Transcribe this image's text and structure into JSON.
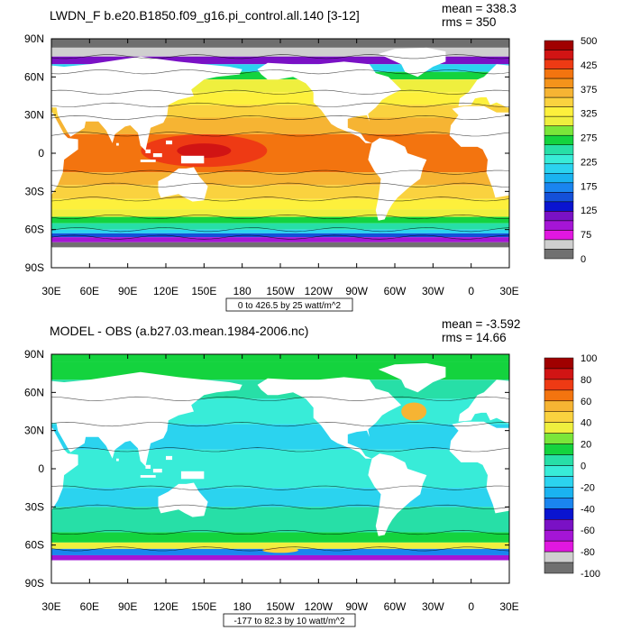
{
  "chart_data": [
    {
      "type": "heatmap",
      "title": "LWDN_F b.e20.B1850.f09_g16.pi_control.all.140 [3-12]",
      "stats": {
        "mean": "mean = 338.3",
        "rms": "rms = 350"
      },
      "xticks": [
        "30E",
        "60E",
        "90E",
        "120E",
        "150E",
        "180",
        "150W",
        "120W",
        "90W",
        "60W",
        "30W",
        "0",
        "30E"
      ],
      "yticks": [
        "90N",
        "60N",
        "30N",
        "0",
        "30S",
        "60S",
        "90S"
      ],
      "contour_info": "0 to 426.5 by 25 watt/m^2",
      "colorbar": {
        "labels": [
          "500",
          "425",
          "375",
          "325",
          "275",
          "225",
          "175",
          "125",
          "75",
          "0"
        ],
        "colors": [
          "#a00000",
          "#d11414",
          "#ee3a14",
          "#f3740f",
          "#f4931b",
          "#f6b433",
          "#fad23f",
          "#fdf03c",
          "#efef3e",
          "#7ae63a",
          "#14d33e",
          "#27dfa7",
          "#38ecd8",
          "#2bd3ef",
          "#1ab3f0",
          "#1a85ef",
          "#1450d9",
          "#0a14d0",
          "#7a11c5",
          "#a515d6",
          "#e117e0",
          "#cfcfcf",
          "#707070"
        ]
      },
      "mask_color": "#6e6e6e"
    },
    {
      "type": "heatmap",
      "title": "MODEL - OBS (a.b27.03.mean.1984-2006.nc)",
      "stats": {
        "mean": "mean = -3.592",
        "rms": "rms = 14.66"
      },
      "xticks": [
        "30E",
        "60E",
        "90E",
        "120E",
        "150E",
        "180",
        "150W",
        "120W",
        "90W",
        "60W",
        "30W",
        "0",
        "30E"
      ],
      "yticks": [
        "90N",
        "60N",
        "30N",
        "0",
        "30S",
        "60S",
        "90S"
      ],
      "contour_info": "-177 to 82.3 by 10 watt/m^2",
      "colorbar": {
        "labels": [
          "100",
          "80",
          "60",
          "40",
          "20",
          "0",
          "-20",
          "-40",
          "-60",
          "-80",
          "-100"
        ],
        "colors": [
          "#a00000",
          "#d11414",
          "#ee3a14",
          "#f3740f",
          "#f6b433",
          "#fad23f",
          "#efef3e",
          "#7ae63a",
          "#14d33e",
          "#27dfa7",
          "#38ecd8",
          "#2bd3ef",
          "#1ab3f0",
          "#1a85ef",
          "#0a14d0",
          "#7a11c5",
          "#a515d6",
          "#e117e0",
          "#cfcfcf",
          "#707070"
        ]
      },
      "mask_color": "#2ab0f0"
    }
  ]
}
